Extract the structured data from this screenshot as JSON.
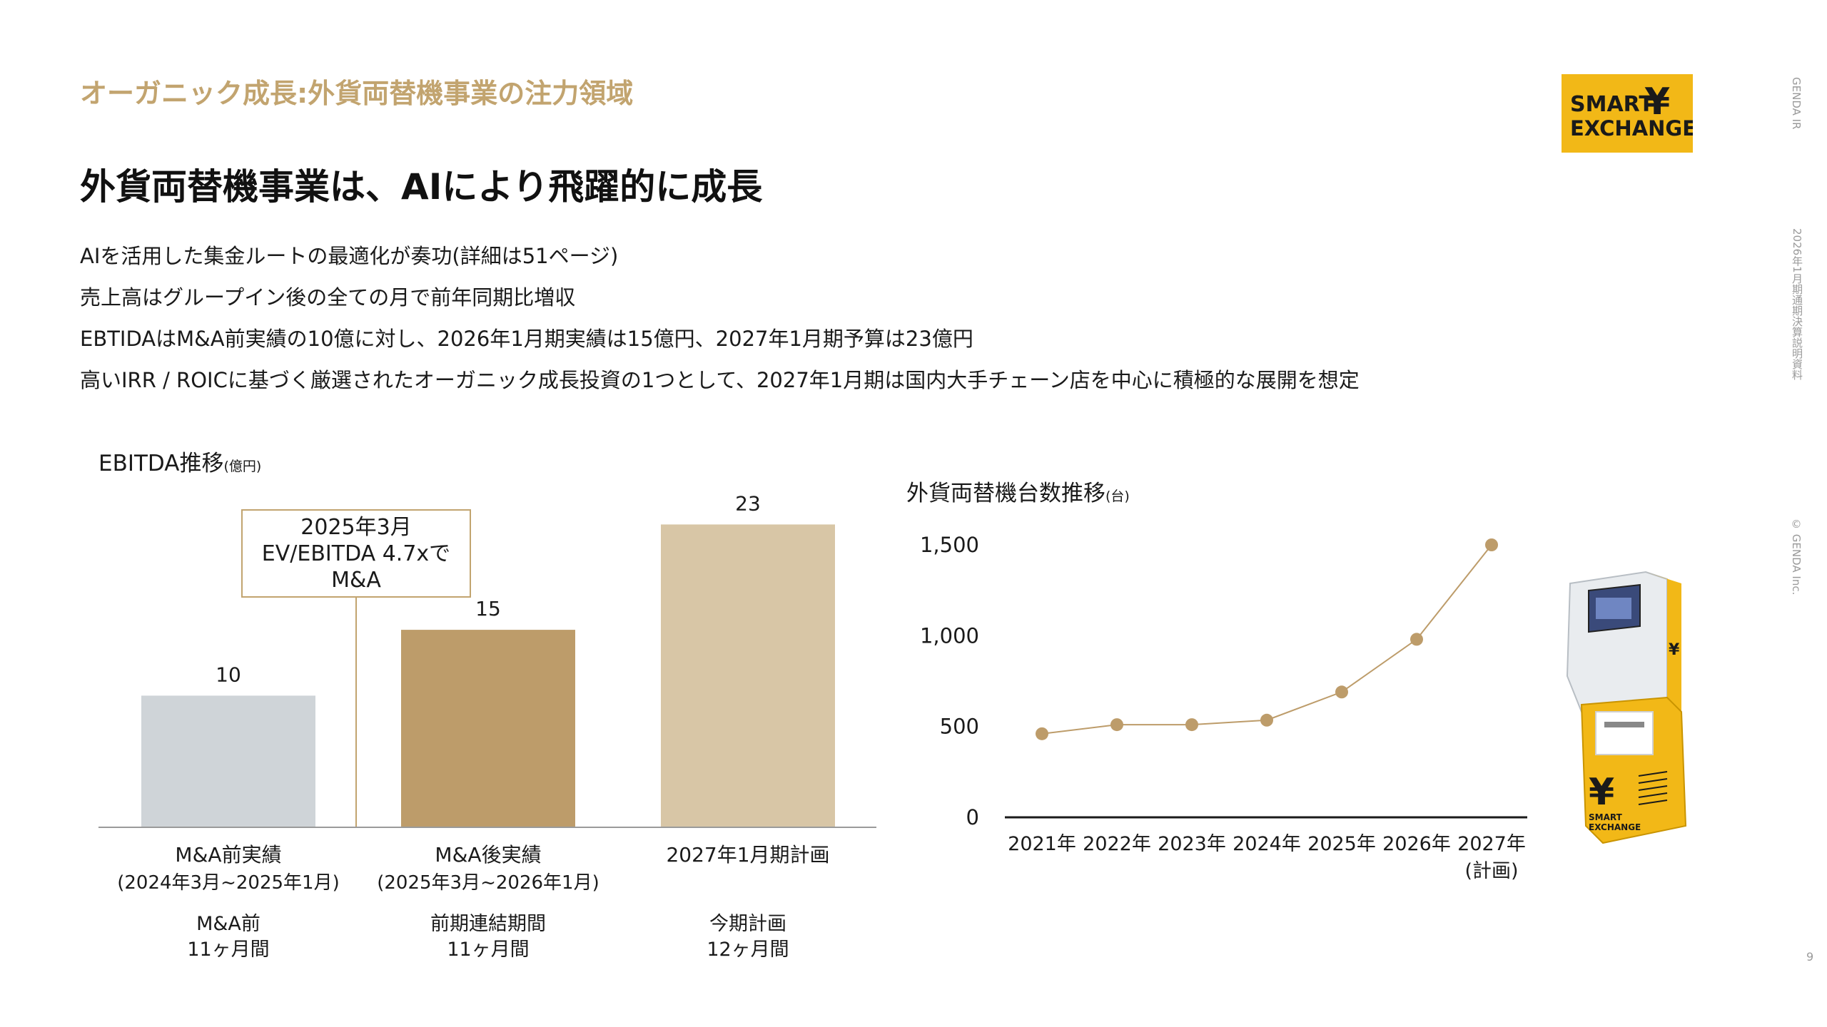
{
  "header": {
    "section_title": "オーガニック成長:外貨両替機事業の注力領域",
    "main_title": "外貨両替機事業は、AIにより飛躍的に成長"
  },
  "bullets": [
    "AIを活用した集金ルートの最適化が奏功(詳細は51ページ)",
    "売上高はグループイン後の全ての月で前年同期比増収",
    "EBTIDAはM&A前実績の10億に対し、2026年1月期実績は15億円、2027年1月期予算は23億円",
    "高いIRR / ROICに基づく厳選されたオーガニック成長投資の1つとして、2027年1月期は国内大手チェーン店を中心に積極的な展開を想定"
  ],
  "logo": {
    "line1": "SMART",
    "line2": "EXCHANGE.",
    "symbol": "¥",
    "color": "#f2b817"
  },
  "side": {
    "brand": "GENDA IR",
    "doc": "2026年1月期通期決算説明資料",
    "copyright": "© GENDA Inc.",
    "page": "9"
  },
  "callout": {
    "line1": "2025年3月",
    "line2": "EV/EBITDA 4.7xで",
    "line3": "M&A"
  },
  "kiosk": {
    "icon": "currency-exchange-kiosk-icon",
    "line1": "SMART",
    "line2": "EXCHANGE"
  },
  "chart_data": [
    {
      "type": "bar",
      "title": "EBITDA推移",
      "unit": "(億円)",
      "categories": [
        {
          "label": "M&A前実績",
          "sublabel": "(2024年3月~2025年1月)",
          "period": "M&A前",
          "months": "11ヶ月間"
        },
        {
          "label": "M&A後実績",
          "sublabel": "(2025年3月~2026年1月)",
          "period": "前期連結期間",
          "months": "11ヶ月間"
        },
        {
          "label": "2027年1月期計画",
          "sublabel": "",
          "period": "今期計画",
          "months": "12ヶ月間"
        }
      ],
      "values": [
        10,
        15,
        23
      ],
      "value_labels": [
        "10",
        "15",
        "23"
      ],
      "colors": [
        "#cfd4d8",
        "#bd9c6a",
        "#d8c6a6"
      ],
      "ylim": [
        0,
        26
      ]
    },
    {
      "type": "line",
      "title": "外貨両替機台数推移",
      "unit": "(台)",
      "x": [
        "2021年",
        "2022年",
        "2023年",
        "2024年",
        "2025年",
        "2026年",
        "2027年"
      ],
      "x_sub": [
        "",
        "",
        "",
        "",
        "",
        "",
        "(計画)"
      ],
      "values": [
        460,
        510,
        510,
        535,
        690,
        980,
        1500
      ],
      "yticks": [
        "0",
        "500",
        "1,000",
        "1,500"
      ],
      "ytick_values": [
        0,
        500,
        1000,
        1500
      ],
      "ylim": [
        0,
        1500
      ],
      "color": "#bd9c6a"
    }
  ]
}
